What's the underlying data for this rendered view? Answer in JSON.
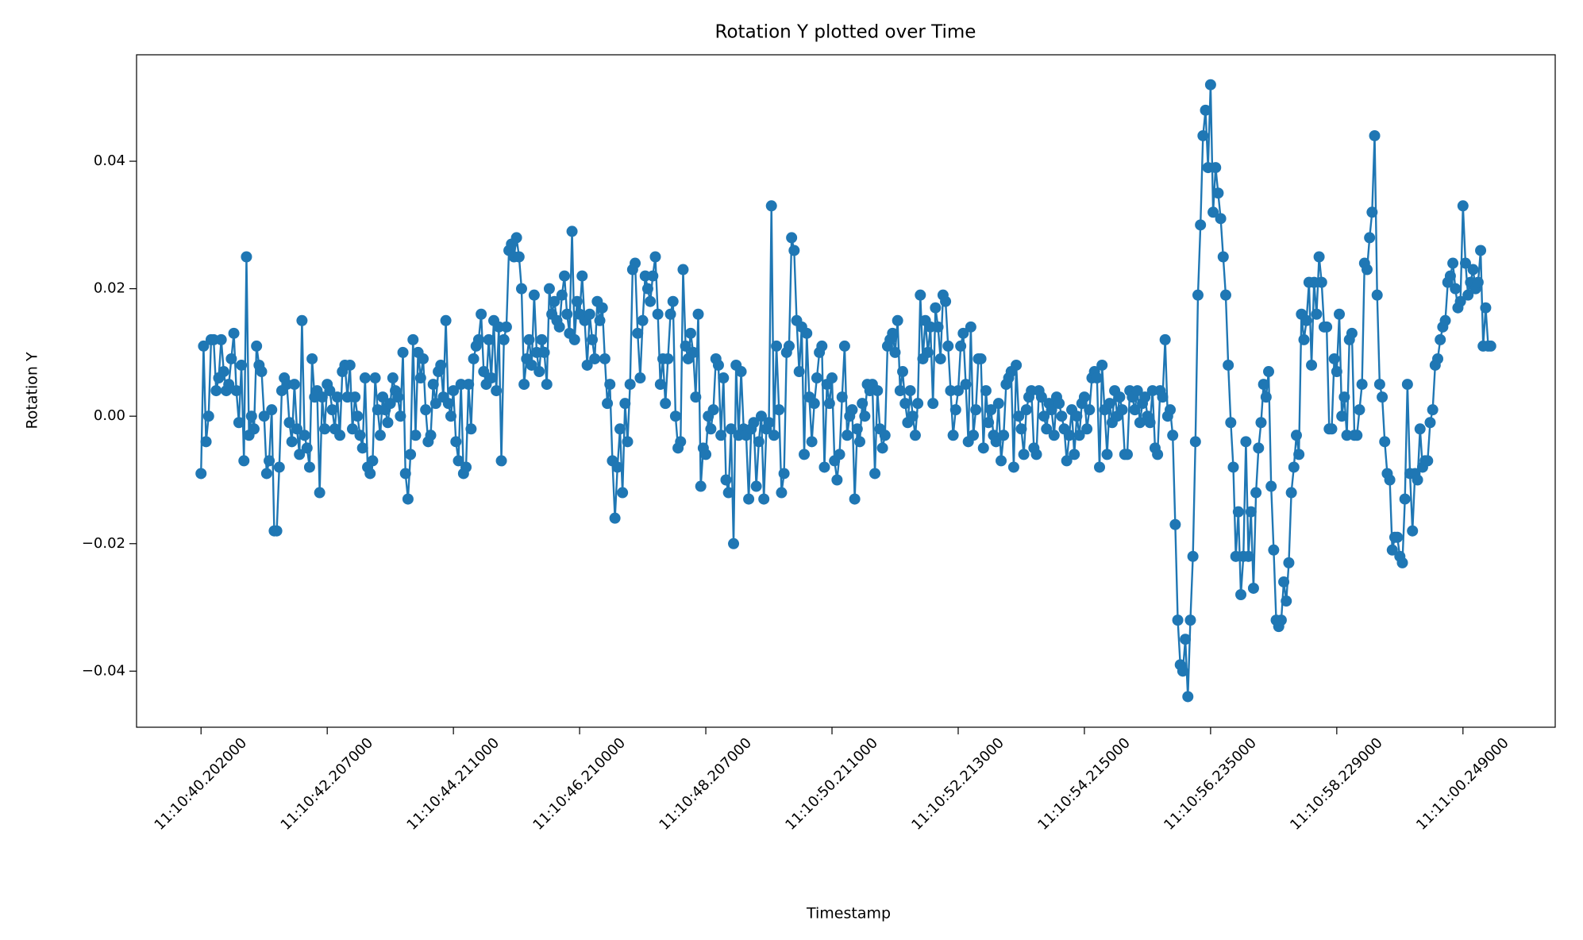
{
  "chart_data": {
    "type": "line",
    "title": "Rotation Y plotted over Time",
    "xlabel": "Timestamp",
    "ylabel": "Rotation Y",
    "color": "#1f77b4",
    "marker": "o",
    "grid": false,
    "ylim": [
      -0.0488,
      0.0567
    ],
    "yticks": [
      {
        "value": -0.04,
        "label": "−0.04"
      },
      {
        "value": -0.02,
        "label": "−0.02"
      },
      {
        "value": 0,
        "label": "0.00"
      },
      {
        "value": 0.02,
        "label": "0.02"
      },
      {
        "value": 0.04,
        "label": "0.04"
      }
    ],
    "categories": [
      "11:10:40.202000",
      null,
      null,
      null,
      null,
      null,
      null,
      null,
      null,
      null,
      null,
      null,
      null,
      null,
      null,
      null,
      null,
      null,
      null,
      null,
      null,
      null,
      null,
      null,
      null,
      null,
      null,
      null,
      null,
      null,
      null,
      null,
      null,
      null,
      null,
      null,
      null,
      null,
      null,
      null,
      null,
      null,
      null,
      null,
      null,
      null,
      null,
      null,
      null,
      null,
      "11:10:42.207000",
      null,
      null,
      null,
      null,
      null,
      null,
      null,
      null,
      null,
      null,
      null,
      null,
      null,
      null,
      null,
      null,
      null,
      null,
      null,
      null,
      null,
      null,
      null,
      null,
      null,
      null,
      null,
      null,
      null,
      null,
      null,
      null,
      null,
      null,
      null,
      null,
      null,
      null,
      null,
      null,
      null,
      null,
      null,
      null,
      null,
      null,
      null,
      null,
      null,
      "11:10:44.211000",
      null,
      null,
      null,
      null,
      null,
      null,
      null,
      null,
      null,
      null,
      null,
      null,
      null,
      null,
      null,
      null,
      null,
      null,
      null,
      null,
      null,
      null,
      null,
      null,
      null,
      null,
      null,
      null,
      null,
      null,
      null,
      null,
      null,
      null,
      null,
      null,
      null,
      null,
      null,
      null,
      null,
      null,
      null,
      null,
      null,
      null,
      null,
      null,
      null,
      "11:10:46.210000",
      null,
      null,
      null,
      null,
      null,
      null,
      null,
      null,
      null,
      null,
      null,
      null,
      null,
      null,
      null,
      null,
      null,
      null,
      null,
      null,
      null,
      null,
      null,
      null,
      null,
      null,
      null,
      null,
      null,
      null,
      null,
      null,
      null,
      null,
      null,
      null,
      null,
      null,
      null,
      null,
      null,
      null,
      null,
      null,
      null,
      null,
      null,
      null,
      null,
      "11:10:48.207000",
      null,
      null,
      null,
      null,
      null,
      null,
      null,
      null,
      null,
      null,
      null,
      null,
      null,
      null,
      null,
      null,
      null,
      null,
      null,
      null,
      null,
      null,
      null,
      null,
      null,
      null,
      null,
      null,
      null,
      null,
      null,
      null,
      null,
      null,
      null,
      null,
      null,
      null,
      null,
      null,
      null,
      null,
      null,
      null,
      null,
      null,
      null,
      null,
      null,
      "11:10:50.211000",
      null,
      null,
      null,
      null,
      null,
      null,
      null,
      null,
      null,
      null,
      null,
      null,
      null,
      null,
      null,
      null,
      null,
      null,
      null,
      null,
      null,
      null,
      null,
      null,
      null,
      null,
      null,
      null,
      null,
      null,
      null,
      null,
      null,
      null,
      null,
      null,
      null,
      null,
      null,
      null,
      null,
      null,
      null,
      null,
      null,
      null,
      null,
      null,
      null,
      "11:10:52.213000",
      null,
      null,
      null,
      null,
      null,
      null,
      null,
      null,
      null,
      null,
      null,
      null,
      null,
      null,
      null,
      null,
      null,
      null,
      null,
      null,
      null,
      null,
      null,
      null,
      null,
      null,
      null,
      null,
      null,
      null,
      null,
      null,
      null,
      null,
      null,
      null,
      null,
      null,
      null,
      null,
      null,
      null,
      null,
      null,
      null,
      null,
      null,
      null,
      null,
      "11:10:54.215000",
      null,
      null,
      null,
      null,
      null,
      null,
      null,
      null,
      null,
      null,
      null,
      null,
      null,
      null,
      null,
      null,
      null,
      null,
      null,
      null,
      null,
      null,
      null,
      null,
      null,
      null,
      null,
      null,
      null,
      null,
      null,
      null,
      null,
      null,
      null,
      null,
      null,
      null,
      null,
      null,
      null,
      null,
      null,
      null,
      null,
      null,
      null,
      null,
      null,
      "11:10:56.235000",
      null,
      null,
      null,
      null,
      null,
      null,
      null,
      null,
      null,
      null,
      null,
      null,
      null,
      null,
      null,
      null,
      null,
      null,
      null,
      null,
      null,
      null,
      null,
      null,
      null,
      null,
      null,
      null,
      null,
      null,
      null,
      null,
      null,
      null,
      null,
      null,
      null,
      null,
      null,
      null,
      null,
      null,
      null,
      null,
      null,
      null,
      null,
      null,
      null,
      "11:10:58.229000",
      null,
      null,
      null,
      null,
      null,
      null,
      null,
      null,
      null,
      null,
      null,
      null,
      null,
      null,
      null,
      null,
      null,
      null,
      null,
      null,
      null,
      null,
      null,
      null,
      null,
      null,
      null,
      null,
      null,
      null,
      null,
      null,
      null,
      null,
      null,
      null,
      null,
      null,
      null,
      null,
      null,
      null,
      null,
      null,
      null,
      null,
      null,
      null,
      null,
      "11:11:00.249000",
      null,
      null,
      null,
      null,
      null,
      null,
      null,
      null,
      null,
      null,
      null
    ],
    "values": [
      -0.009,
      0.011,
      -0.004,
      0.0,
      0.012,
      0.012,
      0.004,
      0.006,
      0.012,
      0.007,
      0.004,
      0.005,
      0.009,
      0.013,
      0.004,
      -0.001,
      0.008,
      -0.007,
      0.025,
      -0.003,
      0.0,
      -0.002,
      0.011,
      0.008,
      0.007,
      0.0,
      -0.009,
      -0.007,
      0.001,
      -0.018,
      -0.018,
      -0.008,
      0.004,
      0.006,
      0.005,
      -0.001,
      -0.004,
      0.005,
      -0.002,
      -0.006,
      0.015,
      -0.003,
      -0.005,
      -0.008,
      0.009,
      0.003,
      0.004,
      -0.012,
      0.003,
      -0.002,
      0.005,
      0.004,
      0.001,
      -0.002,
      0.003,
      -0.003,
      0.007,
      0.008,
      0.003,
      0.008,
      -0.002,
      0.003,
      0.0,
      -0.003,
      -0.005,
      0.006,
      -0.008,
      -0.009,
      -0.007,
      0.006,
      0.001,
      -0.003,
      0.003,
      0.001,
      -0.001,
      0.002,
      0.006,
      0.004,
      0.003,
      0.0,
      0.01,
      -0.009,
      -0.013,
      -0.006,
      0.012,
      -0.003,
      0.01,
      0.006,
      0.009,
      0.001,
      -0.004,
      -0.003,
      0.005,
      0.002,
      0.007,
      0.008,
      0.003,
      0.015,
      0.002,
      0.0,
      0.004,
      -0.004,
      -0.007,
      0.005,
      -0.009,
      -0.008,
      0.005,
      -0.002,
      0.009,
      0.011,
      0.012,
      0.016,
      0.007,
      0.005,
      0.012,
      0.006,
      0.015,
      0.004,
      0.014,
      -0.007,
      0.012,
      0.014,
      0.026,
      0.027,
      0.025,
      0.028,
      0.025,
      0.02,
      0.005,
      0.009,
      0.012,
      0.008,
      0.019,
      0.01,
      0.007,
      0.012,
      0.01,
      0.005,
      0.02,
      0.016,
      0.018,
      0.015,
      0.014,
      0.019,
      0.022,
      0.016,
      0.013,
      0.029,
      0.012,
      0.018,
      0.016,
      0.022,
      0.015,
      0.008,
      0.016,
      0.012,
      0.009,
      0.018,
      0.015,
      0.017,
      0.009,
      0.002,
      0.005,
      -0.007,
      -0.016,
      -0.008,
      -0.002,
      -0.012,
      0.002,
      -0.004,
      0.005,
      0.023,
      0.024,
      0.013,
      0.006,
      0.015,
      0.022,
      0.02,
      0.018,
      0.022,
      0.025,
      0.016,
      0.005,
      0.009,
      0.002,
      0.009,
      0.016,
      0.018,
      0.0,
      -0.005,
      -0.004,
      0.023,
      0.011,
      0.009,
      0.013,
      0.01,
      0.003,
      0.016,
      -0.011,
      -0.005,
      -0.006,
      0.0,
      -0.002,
      0.001,
      0.009,
      0.008,
      -0.003,
      0.006,
      -0.01,
      -0.012,
      -0.002,
      -0.02,
      0.008,
      -0.003,
      0.007,
      -0.002,
      -0.003,
      -0.013,
      -0.002,
      -0.001,
      -0.011,
      -0.004,
      0.0,
      -0.013,
      -0.002,
      -0.001,
      0.033,
      -0.003,
      0.011,
      0.001,
      -0.012,
      -0.009,
      0.01,
      0.011,
      0.028,
      0.026,
      0.015,
      0.007,
      0.014,
      -0.006,
      0.013,
      0.003,
      -0.004,
      0.002,
      0.006,
      0.01,
      0.011,
      -0.008,
      0.005,
      0.002,
      0.006,
      -0.007,
      -0.01,
      -0.006,
      0.003,
      0.011,
      -0.003,
      0.0,
      0.001,
      -0.013,
      -0.002,
      -0.004,
      0.002,
      0.0,
      0.005,
      0.004,
      0.005,
      -0.009,
      0.004,
      -0.002,
      -0.005,
      -0.003,
      0.011,
      0.012,
      0.013,
      0.01,
      0.015,
      0.004,
      0.007,
      0.002,
      -0.001,
      0.004,
      0.0,
      -0.003,
      0.002,
      0.019,
      0.009,
      0.015,
      0.01,
      0.014,
      0.002,
      0.017,
      0.014,
      0.009,
      0.019,
      0.018,
      0.011,
      0.004,
      -0.003,
      0.001,
      0.004,
      0.011,
      0.013,
      0.005,
      -0.004,
      0.014,
      -0.003,
      0.001,
      0.009,
      0.009,
      -0.005,
      0.004,
      -0.001,
      0.001,
      -0.003,
      -0.004,
      0.002,
      -0.007,
      -0.003,
      0.005,
      0.006,
      0.007,
      -0.008,
      0.008,
      0.0,
      -0.002,
      -0.006,
      0.001,
      0.003,
      0.004,
      -0.005,
      -0.006,
      0.004,
      0.003,
      0.0,
      -0.002,
      0.002,
      0.001,
      -0.003,
      0.003,
      0.002,
      0.0,
      -0.002,
      -0.007,
      -0.003,
      0.001,
      -0.006,
      0.0,
      -0.003,
      0.002,
      0.003,
      -0.002,
      0.001,
      0.006,
      0.007,
      0.006,
      -0.008,
      0.008,
      0.001,
      -0.006,
      0.002,
      -0.001,
      0.004,
      0.0,
      0.003,
      0.001,
      -0.006,
      -0.006,
      0.004,
      0.003,
      0.001,
      0.004,
      -0.001,
      0.002,
      0.003,
      0.0,
      -0.001,
      0.004,
      -0.005,
      -0.006,
      0.004,
      0.003,
      0.012,
      0.0,
      0.001,
      -0.003,
      -0.017,
      -0.032,
      -0.039,
      -0.04,
      -0.035,
      -0.044,
      -0.032,
      -0.022,
      -0.004,
      0.019,
      0.03,
      0.044,
      0.048,
      0.039,
      0.052,
      0.032,
      0.039,
      0.035,
      0.031,
      0.025,
      0.019,
      0.008,
      -0.001,
      -0.008,
      -0.022,
      -0.015,
      -0.028,
      -0.022,
      -0.004,
      -0.022,
      -0.015,
      -0.027,
      -0.012,
      -0.005,
      -0.001,
      0.005,
      0.003,
      0.007,
      -0.011,
      -0.021,
      -0.032,
      -0.033,
      -0.032,
      -0.026,
      -0.029,
      -0.023,
      -0.012,
      -0.008,
      -0.003,
      -0.006,
      0.016,
      0.012,
      0.015,
      0.021,
      0.008,
      0.021,
      0.016,
      0.025,
      0.021,
      0.014,
      0.014,
      -0.002,
      -0.002,
      0.009,
      0.007,
      0.016,
      0.0,
      0.003,
      -0.003,
      0.012,
      0.013,
      -0.003,
      -0.003,
      0.001,
      0.005,
      0.024,
      0.023,
      0.028,
      0.032,
      0.044,
      0.019,
      0.005,
      0.003,
      -0.004,
      -0.009,
      -0.01,
      -0.021,
      -0.019,
      -0.019,
      -0.022,
      -0.023,
      -0.013,
      0.005,
      -0.009,
      -0.018,
      -0.009,
      -0.01,
      -0.002,
      -0.008,
      -0.007,
      -0.007,
      -0.001,
      0.001,
      0.008,
      0.009,
      0.012,
      0.014,
      0.015,
      0.021,
      0.022,
      0.024,
      0.02,
      0.017,
      0.018,
      0.033,
      0.024,
      0.019,
      0.021,
      0.023,
      0.02,
      0.021,
      0.026,
      0.011,
      0.017,
      0.011,
      0.011
    ]
  }
}
